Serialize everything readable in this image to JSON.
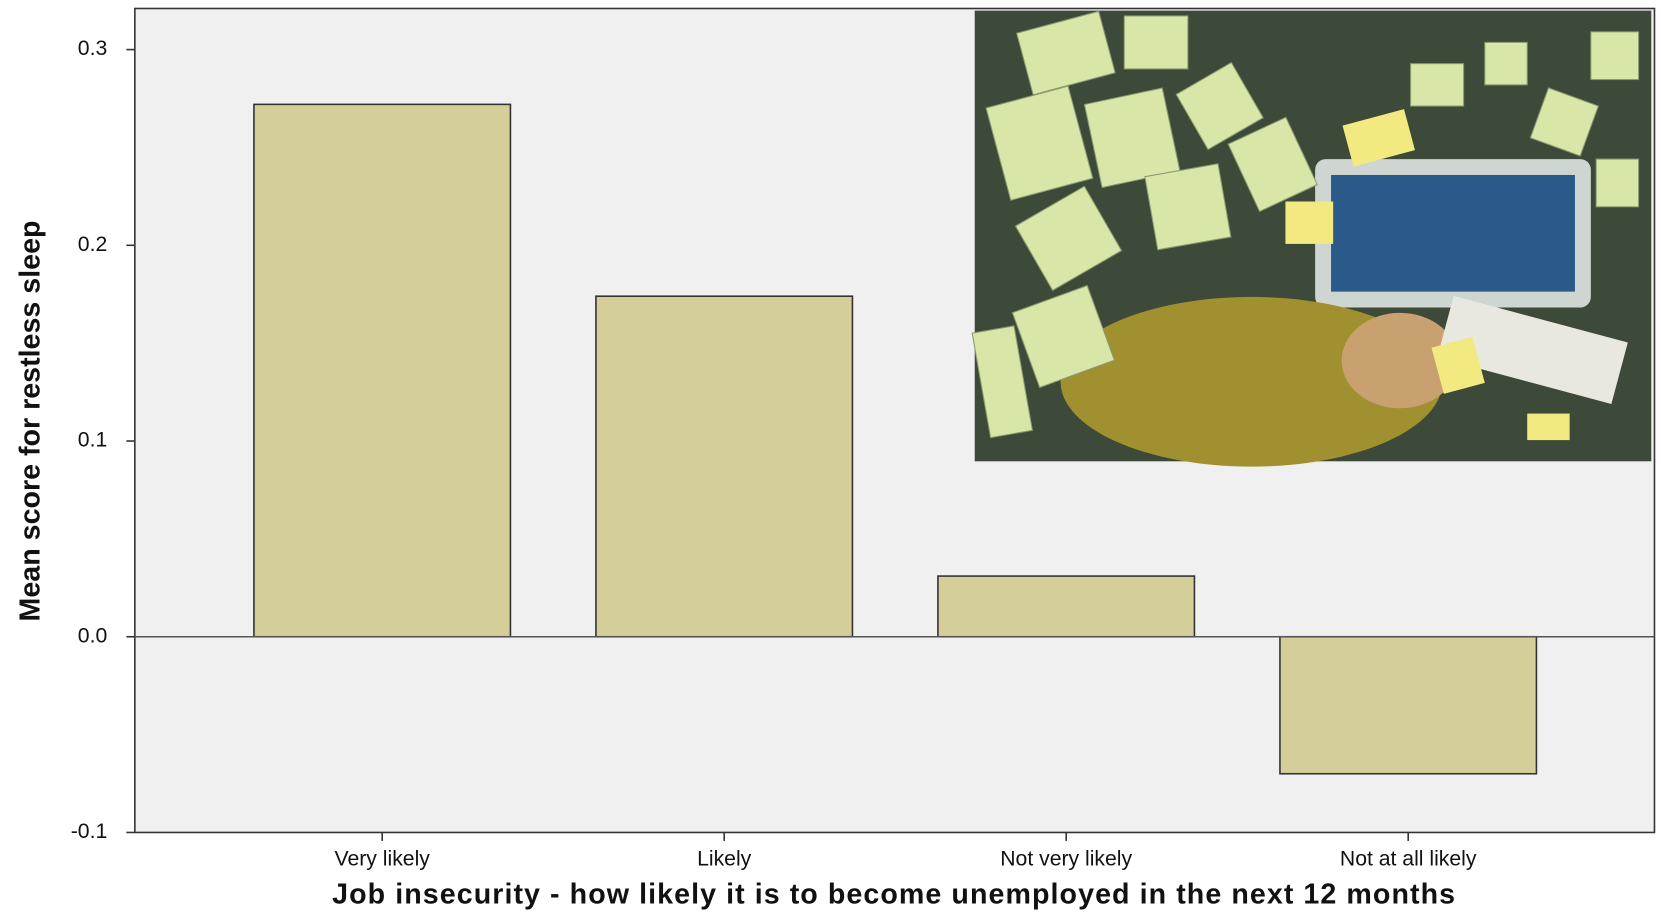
{
  "chart_data": {
    "type": "bar",
    "title": "Job insecurity - how likely it is to become unemployed in the next 12 months",
    "y_label": "Mean score for restless sleep",
    "categories": [
      "Very likely",
      "Likely",
      "Not very likely",
      "Not at all likely"
    ],
    "values": [
      0.272,
      0.174,
      0.031,
      -0.07
    ],
    "color": "#d4cf98",
    "ylim": [
      -0.1,
      0.321
    ],
    "yticks": [
      -0.1,
      {
        "value": 0,
        "label": "0.0"
      },
      0.1,
      0.2,
      0.3
    ],
    "grid": false
  }
}
